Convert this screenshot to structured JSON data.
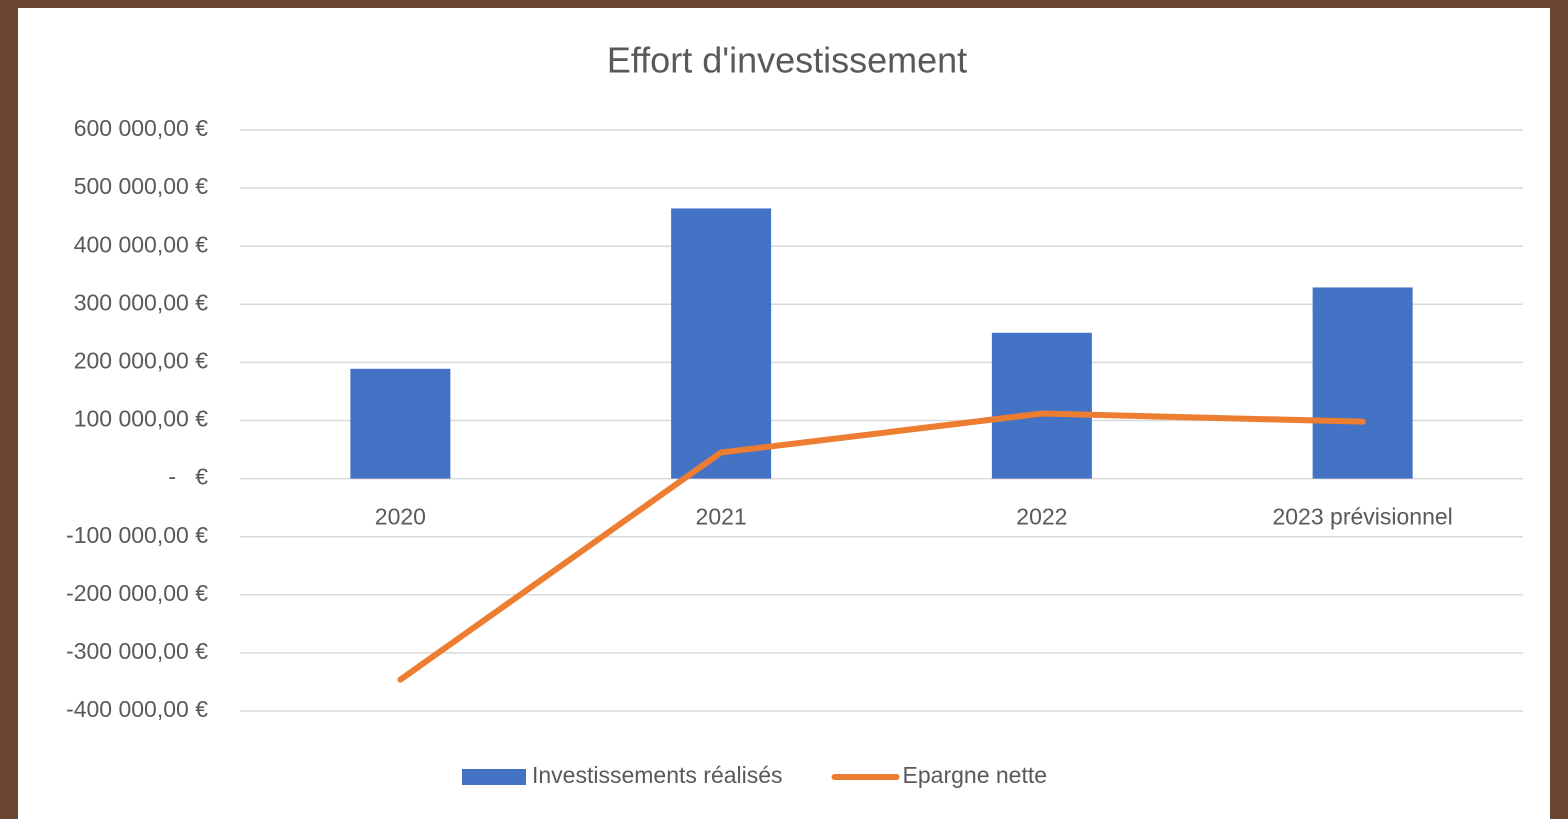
{
  "chart_data": {
    "type": "bar",
    "title": "Effort d'investissement",
    "categories": [
      "2020",
      "2021",
      "2022",
      "2023 prévisionnel"
    ],
    "series": [
      {
        "name": "Investissements réalisés",
        "type": "bar",
        "color": "#4472c4",
        "values": [
          189000,
          465000,
          251000,
          329000
        ]
      },
      {
        "name": "Epargne nette",
        "type": "line",
        "color": "#ed7d31",
        "values": [
          -346000,
          45000,
          112000,
          98000
        ]
      }
    ],
    "ylim": [
      -400000,
      600000
    ],
    "yticks": [
      {
        "value": 600000,
        "label": "600 000,00 €"
      },
      {
        "value": 500000,
        "label": "500 000,00 €"
      },
      {
        "value": 400000,
        "label": "400 000,00 €"
      },
      {
        "value": 300000,
        "label": "300 000,00 €"
      },
      {
        "value": 200000,
        "label": "200 000,00 €"
      },
      {
        "value": 100000,
        "label": "100 000,00 €"
      },
      {
        "value": 0,
        "label": "-   €"
      },
      {
        "value": -100000,
        "label": "-100 000,00 €"
      },
      {
        "value": -200000,
        "label": "-200 000,00 €"
      },
      {
        "value": -300000,
        "label": "-300 000,00 €"
      },
      {
        "value": -400000,
        "label": "-400 000,00 €"
      }
    ],
    "grid": true,
    "legend": "bottom"
  }
}
